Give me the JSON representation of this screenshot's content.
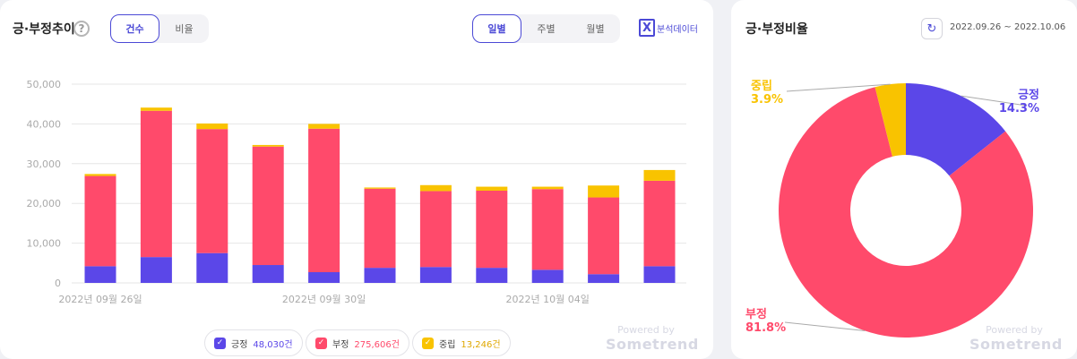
{
  "trend_panel": {
    "title": "긍·부정추이",
    "help_label": "?",
    "count_tab_label": "건수",
    "ratio_tab_label": "비율",
    "daily_label": "일별",
    "weekly_label": "주별",
    "monthly_label": "월별",
    "excel_icon_letter": "X",
    "excel_label": "분석데이터",
    "legend": [
      {
        "check": "✓",
        "label": "긍정",
        "value": "48,030건",
        "color": "#5b47e8"
      },
      {
        "check": "✓",
        "label": "부정",
        "value": "275,606건",
        "color": "#ff4a6b"
      },
      {
        "check": "✓",
        "label": "중립",
        "value": "13,246건",
        "color": "#f9c300"
      }
    ],
    "powered_by": "Powered by",
    "brand": "Sometrend"
  },
  "ratio_panel": {
    "title": "긍·부정비율",
    "refresh_icon": "↻",
    "date_range": "2022.09.26 ~ 2022.10.06",
    "powered_by": "Powered by",
    "brand": "Sometrend"
  },
  "chart_data": [
    {
      "type": "bar",
      "stacked": true,
      "categories": [
        "2022-09-26",
        "2022-09-27",
        "2022-09-28",
        "2022-09-29",
        "2022-09-30",
        "2022-10-01",
        "2022-10-02",
        "2022-10-03",
        "2022-10-04",
        "2022-10-05",
        "2022-10-06"
      ],
      "series": [
        {
          "name": "긍정",
          "color": "#5b47e8",
          "values": [
            4200,
            6500,
            7500,
            4500,
            2700,
            3800,
            4000,
            3800,
            3300,
            2200,
            4200
          ]
        },
        {
          "name": "부정",
          "color": "#ff4a6b",
          "values": [
            22700,
            36800,
            31200,
            29800,
            36100,
            19900,
            19100,
            19400,
            20300,
            19300,
            21500
          ]
        },
        {
          "name": "중립",
          "color": "#f9c300",
          "values": [
            500,
            800,
            1400,
            400,
            1200,
            300,
            1500,
            1000,
            600,
            3000,
            2700
          ]
        }
      ],
      "y_ticks": [
        "50,000",
        "40,000",
        "30,000",
        "20,000",
        "10,000",
        "0"
      ],
      "x_tick_labels": [
        {
          "index": 0,
          "label": "2022년 09월 26일"
        },
        {
          "index": 4,
          "label": "2022년 09월 30일"
        },
        {
          "index": 8,
          "label": "2022년 10월 04일"
        }
      ],
      "ylim": [
        0,
        50000
      ],
      "grid": true
    },
    {
      "type": "pie",
      "donut": true,
      "slices": [
        {
          "label": "긍정",
          "value": 14.3,
          "display": "14.3%",
          "color": "#5b47e8"
        },
        {
          "label": "부정",
          "value": 81.8,
          "display": "81.8%",
          "color": "#ff4a6b"
        },
        {
          "label": "중립",
          "value": 3.9,
          "display": "3.9%",
          "color": "#f9c300"
        }
      ]
    }
  ]
}
